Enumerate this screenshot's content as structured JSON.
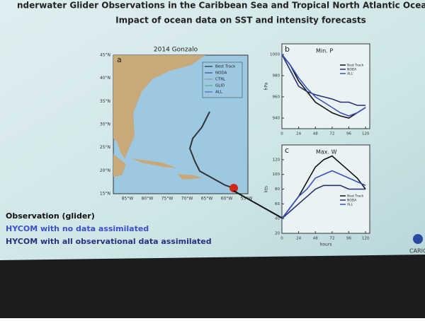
{
  "slide": {
    "title": "nderwater Glider Observations in the Caribbean Sea and Tropical North Atlantic Ocea",
    "subtitle": "Impact of ocean data on SST and intensity forecasts",
    "legend_lines": [
      "Observation  (glider)",
      "HYCOM with no data assimilated",
      "HYCOM with all observational data assimilated"
    ],
    "logo": "CARICO"
  },
  "map": {
    "panel": "a",
    "title": "2014 Gonzalo",
    "lat_labels": [
      "45°N",
      "40°N",
      "35°N",
      "30°N",
      "25°N",
      "20°N",
      "15°N"
    ],
    "lon_labels": [
      "85°W",
      "80°W",
      "75°W",
      "70°W",
      "65°W",
      "60°W",
      "55°W"
    ],
    "legend": [
      "Best Track",
      "NODA",
      "CTRL",
      "GLID",
      "ALL"
    ]
  },
  "chart_data": [
    {
      "type": "line",
      "panel": "b",
      "title": "Min. P",
      "y_label": "hPa",
      "x": [
        0,
        12,
        24,
        36,
        48,
        60,
        72,
        84,
        96,
        108,
        120
      ],
      "xlim": [
        0,
        126
      ],
      "xticks": [
        0,
        24,
        48,
        72,
        96,
        120
      ],
      "ylim": [
        930,
        1010
      ],
      "yticks": [
        940,
        960,
        980,
        1000
      ],
      "series": [
        {
          "name": "Best Track",
          "color": "#111111",
          "values": [
            1000,
            990,
            975,
            965,
            955,
            950,
            945,
            942,
            940,
            945,
            950
          ]
        },
        {
          "name": "NODA",
          "color": "#2a2f70",
          "values": [
            1000,
            985,
            970,
            965,
            962,
            960,
            958,
            955,
            955,
            952,
            952
          ]
        },
        {
          "name": "ALL",
          "color": "#3c4fc0",
          "values": [
            1000,
            990,
            978,
            968,
            960,
            955,
            950,
            945,
            942,
            945,
            950
          ]
        }
      ]
    },
    {
      "type": "line",
      "panel": "c",
      "title": "Max. W",
      "y_label": "kts",
      "x_label": "hours",
      "x": [
        0,
        12,
        24,
        36,
        48,
        60,
        72,
        84,
        96,
        108,
        120
      ],
      "xlim": [
        0,
        126
      ],
      "xticks": [
        0,
        24,
        48,
        72,
        96,
        120
      ],
      "ylim": [
        20,
        140
      ],
      "yticks": [
        20,
        40,
        60,
        80,
        100,
        120
      ],
      "series": [
        {
          "name": "Best Track",
          "color": "#111111",
          "values": [
            40,
            55,
            70,
            90,
            110,
            120,
            125,
            115,
            105,
            95,
            80
          ]
        },
        {
          "name": "NODA",
          "color": "#2a2f70",
          "values": [
            40,
            50,
            60,
            70,
            80,
            85,
            85,
            85,
            80,
            80,
            80
          ]
        },
        {
          "name": "ALL",
          "color": "#3c4fc0",
          "values": [
            40,
            55,
            70,
            80,
            95,
            100,
            105,
            100,
            95,
            90,
            85
          ]
        }
      ]
    }
  ]
}
